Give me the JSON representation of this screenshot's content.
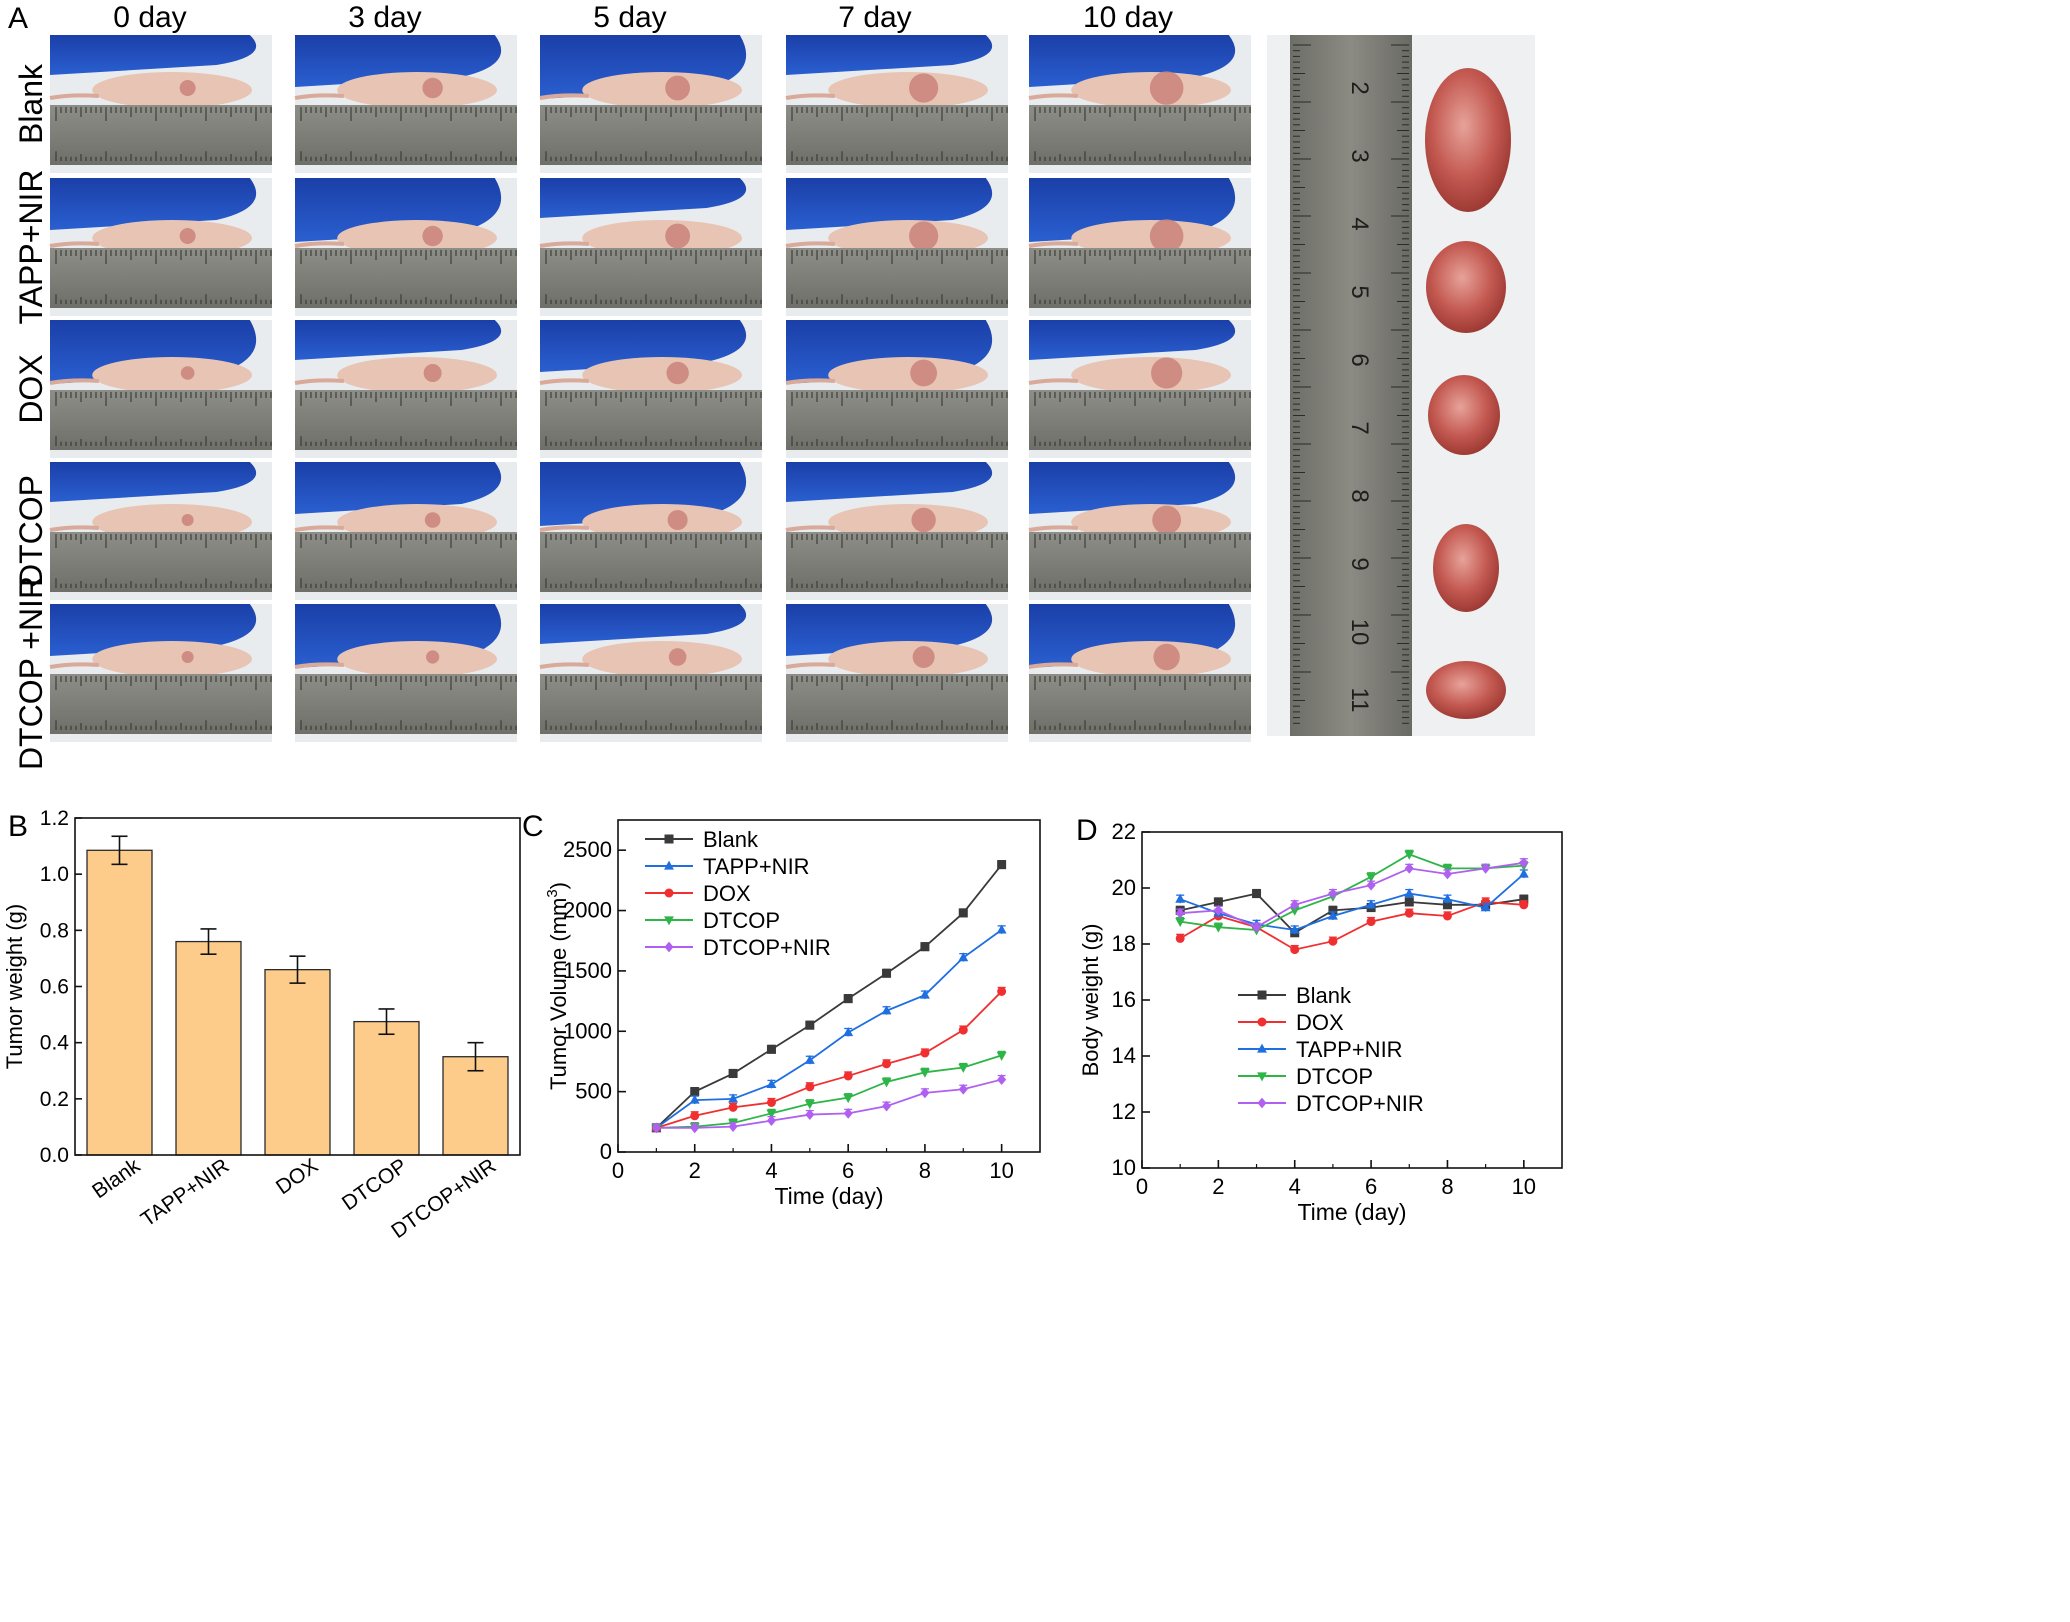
{
  "panel_a": {
    "label": "A",
    "day_labels": [
      "0  day",
      "3 day",
      "5  day",
      "7  day",
      "10 day"
    ],
    "groups": [
      "Blank",
      "TAPP+NIR",
      "DOX",
      "DTCOP",
      "DTCOP +NIR"
    ],
    "ruler_marks": [
      "2",
      "3",
      "4",
      "5",
      "6",
      "7",
      "8",
      "9",
      "10",
      "11"
    ]
  },
  "chart_data": [
    {
      "panel_label": "B",
      "type": "bar",
      "categories": [
        "Blank",
        "TAPP+NIR",
        "DOX",
        "DTCOP",
        "DTCOP+NIR"
      ],
      "values": [
        1.085,
        0.76,
        0.66,
        0.475,
        0.35
      ],
      "errors": [
        0.05,
        0.045,
        0.048,
        0.045,
        0.05
      ],
      "ylabel": "Tumor weight (g)",
      "ylim": [
        0.0,
        1.2
      ],
      "yticks": [
        "0.0",
        "0.2",
        "0.4",
        "0.6",
        "0.8",
        "1.0",
        "1.2"
      ],
      "bar_color": "#fdcc8a"
    },
    {
      "panel_label": "C",
      "type": "line",
      "x": [
        1,
        2,
        3,
        4,
        5,
        6,
        7,
        8,
        9,
        10
      ],
      "xlabel": "Time (day)",
      "ylabel": "Tumor Volume (mm",
      "ylabel_sup": "3",
      "ylabel_end": ")",
      "xlim": [
        0,
        11
      ],
      "ylim": [
        0,
        2750
      ],
      "xticks": [
        "0",
        "2",
        "4",
        "6",
        "8",
        "10"
      ],
      "yticks": [
        "0",
        "500",
        "1000",
        "1500",
        "2000",
        "2500"
      ],
      "legend": "top-left",
      "series": [
        {
          "name": "Blank",
          "color": "#3a3a3a",
          "marker": "square",
          "values": [
            200,
            500,
            650,
            850,
            1050,
            1270,
            1480,
            1700,
            1980,
            2380
          ]
        },
        {
          "name": "TAPP+NIR",
          "color": "#1f6fe0",
          "marker": "triangle-up",
          "values": [
            200,
            430,
            440,
            560,
            760,
            990,
            1170,
            1300,
            1610,
            1840
          ]
        },
        {
          "name": "DOX",
          "color": "#f03030",
          "marker": "circle",
          "values": [
            200,
            300,
            370,
            410,
            540,
            630,
            730,
            820,
            1010,
            1330
          ]
        },
        {
          "name": "DTCOP",
          "color": "#2db548",
          "marker": "triangle-down",
          "values": [
            200,
            210,
            240,
            320,
            400,
            450,
            580,
            660,
            700,
            800
          ]
        },
        {
          "name": "DTCOP+NIR",
          "color": "#b060f0",
          "marker": "diamond",
          "values": [
            200,
            200,
            210,
            260,
            310,
            320,
            380,
            490,
            520,
            600
          ]
        }
      ]
    },
    {
      "panel_label": "D",
      "type": "line",
      "x": [
        1,
        2,
        3,
        4,
        5,
        6,
        7,
        8,
        9,
        10
      ],
      "xlabel": "Time (day)",
      "ylabel": "Body weight (g)",
      "xlim": [
        0,
        11
      ],
      "ylim": [
        10,
        22
      ],
      "xticks": [
        "0",
        "2",
        "4",
        "6",
        "8",
        "10"
      ],
      "yticks": [
        "10",
        "12",
        "14",
        "16",
        "18",
        "20",
        "22"
      ],
      "legend": "center",
      "series": [
        {
          "name": "Blank",
          "color": "#3a3a3a",
          "marker": "square",
          "values": [
            19.2,
            19.5,
            19.8,
            18.4,
            19.2,
            19.3,
            19.5,
            19.4,
            19.4,
            19.6
          ]
        },
        {
          "name": "DOX",
          "color": "#f03030",
          "marker": "circle",
          "values": [
            18.2,
            19.0,
            18.6,
            17.8,
            18.1,
            18.8,
            19.1,
            19.0,
            19.5,
            19.4
          ]
        },
        {
          "name": "TAPP+NIR",
          "color": "#1f6fe0",
          "marker": "triangle-up",
          "values": [
            19.6,
            19.1,
            18.7,
            18.5,
            19.0,
            19.4,
            19.8,
            19.6,
            19.3,
            20.5
          ]
        },
        {
          "name": "DTCOP",
          "color": "#2db548",
          "marker": "triangle-down",
          "values": [
            18.8,
            18.6,
            18.5,
            19.2,
            19.7,
            20.4,
            21.2,
            20.7,
            20.7,
            20.8
          ]
        },
        {
          "name": "DTCOP+NIR",
          "color": "#b060f0",
          "marker": "diamond",
          "values": [
            19.1,
            19.2,
            18.6,
            19.4,
            19.8,
            20.1,
            20.7,
            20.5,
            20.7,
            20.9
          ]
        }
      ]
    }
  ]
}
